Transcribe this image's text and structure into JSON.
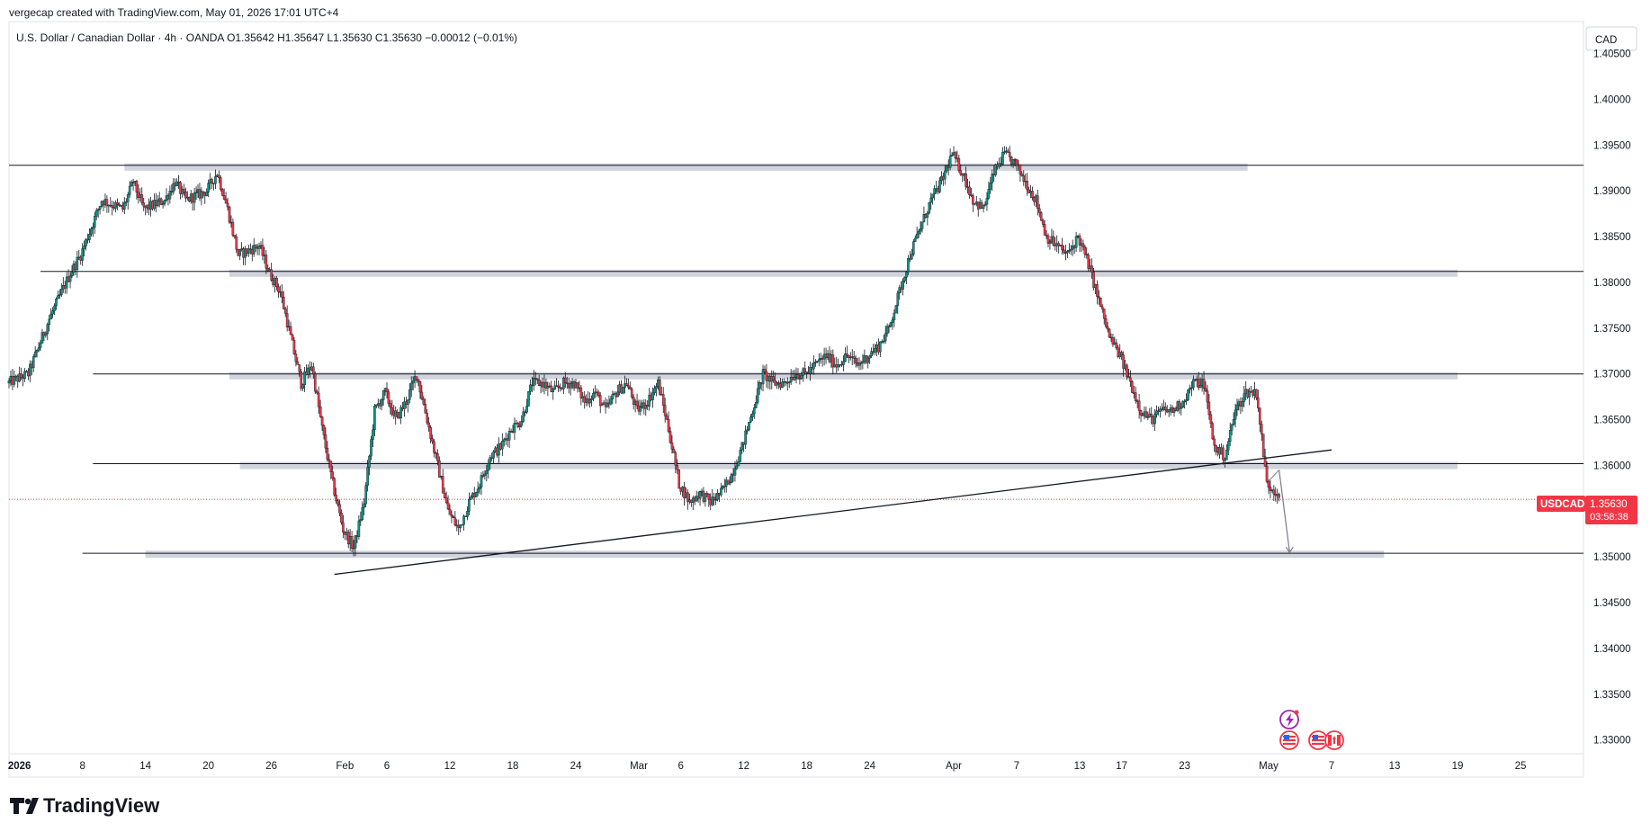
{
  "header": {
    "credit": "vergecap created with TradingView.com, May 01, 2026 17:01 UTC+4",
    "legend": "U.S. Dollar / Canadian Dollar · 4h · OANDA  O1.35642  H1.35647  L1.35630  C1.35630  −0.00012 (−0.01%)"
  },
  "currency_label": "CAD",
  "brand": {
    "name": "TradingView",
    "logo_icon": "tradingview-logo-icon"
  },
  "last_price": {
    "symbol": "USDCAD",
    "price": "1.35630",
    "countdown": "03:58:38",
    "color": "#f23645"
  },
  "colors": {
    "up": "#089981",
    "down": "#f23645",
    "wick": "#131722",
    "zone": "#d1d4dc",
    "line": "#131722"
  },
  "events": [
    {
      "name": "bolt-event-icon"
    },
    {
      "name": "us-flag-icon"
    },
    {
      "name": "us-flag-icon"
    },
    {
      "name": "ca-flag-icon"
    }
  ],
  "chart_data": {
    "type": "candlestick",
    "symbol": "USDCAD",
    "title": "U.S. Dollar / Canadian Dollar",
    "interval": "4h",
    "source": "OANDA",
    "ylim": [
      1.3285,
      1.4085
    ],
    "xlim": [
      "2026-01-01",
      "2026-05-31"
    ],
    "y_ticks": [
      "1.40500",
      "1.40000",
      "1.39500",
      "1.39000",
      "1.38500",
      "1.38000",
      "1.37500",
      "1.37000",
      "1.36500",
      "1.36000",
      "1.35500",
      "1.35000",
      "1.34500",
      "1.34000",
      "1.33500",
      "1.33000"
    ],
    "x_ticks": [
      {
        "date": "2026-01-02",
        "label": "2026",
        "bold": true
      },
      {
        "date": "2026-01-08",
        "label": "8"
      },
      {
        "date": "2026-01-14",
        "label": "14"
      },
      {
        "date": "2026-01-20",
        "label": "20"
      },
      {
        "date": "2026-01-26",
        "label": "26"
      },
      {
        "date": "2026-02-02",
        "label": "Feb"
      },
      {
        "date": "2026-02-06",
        "label": "6"
      },
      {
        "date": "2026-02-12",
        "label": "12"
      },
      {
        "date": "2026-02-18",
        "label": "18"
      },
      {
        "date": "2026-02-24",
        "label": "24"
      },
      {
        "date": "2026-03-02",
        "label": "Mar"
      },
      {
        "date": "2026-03-06",
        "label": "6"
      },
      {
        "date": "2026-03-12",
        "label": "12"
      },
      {
        "date": "2026-03-18",
        "label": "18"
      },
      {
        "date": "2026-03-24",
        "label": "24"
      },
      {
        "date": "2026-04-01",
        "label": "Apr"
      },
      {
        "date": "2026-04-07",
        "label": "7"
      },
      {
        "date": "2026-04-13",
        "label": "13"
      },
      {
        "date": "2026-04-17",
        "label": "17"
      },
      {
        "date": "2026-04-23",
        "label": "23"
      },
      {
        "date": "2026-05-01",
        "label": "May"
      },
      {
        "date": "2026-05-07",
        "label": "7"
      },
      {
        "date": "2026-05-13",
        "label": "13"
      },
      {
        "date": "2026-05-19",
        "label": "19"
      },
      {
        "date": "2026-05-25",
        "label": "25"
      }
    ],
    "path": [
      [
        "2026-01-01",
        1.369
      ],
      [
        "2026-01-03",
        1.37
      ],
      [
        "2026-01-05",
        1.376
      ],
      [
        "2026-01-07",
        1.381
      ],
      [
        "2026-01-08",
        1.383
      ],
      [
        "2026-01-10",
        1.389
      ],
      [
        "2026-01-12",
        1.388
      ],
      [
        "2026-01-13",
        1.391
      ],
      [
        "2026-01-14",
        1.388
      ],
      [
        "2026-01-16",
        1.389
      ],
      [
        "2026-01-17",
        1.391
      ],
      [
        "2026-01-18",
        1.389
      ],
      [
        "2026-01-20",
        1.39
      ],
      [
        "2026-01-21",
        1.392
      ],
      [
        "2026-01-22",
        1.388
      ],
      [
        "2026-01-23",
        1.383
      ],
      [
        "2026-01-25",
        1.384
      ],
      [
        "2026-01-26",
        1.381
      ],
      [
        "2026-01-27",
        1.379
      ],
      [
        "2026-01-28",
        1.374
      ],
      [
        "2026-01-29",
        1.369
      ],
      [
        "2026-01-30",
        1.371
      ],
      [
        "2026-01-31",
        1.364
      ],
      [
        "2026-02-01",
        1.358
      ],
      [
        "2026-02-02",
        1.353
      ],
      [
        "2026-02-03",
        1.351
      ],
      [
        "2026-02-04",
        1.356
      ],
      [
        "2026-02-05",
        1.366
      ],
      [
        "2026-02-06",
        1.368
      ],
      [
        "2026-02-07",
        1.365
      ],
      [
        "2026-02-08",
        1.367
      ],
      [
        "2026-02-09",
        1.37
      ],
      [
        "2026-02-10",
        1.365
      ],
      [
        "2026-02-11",
        1.36
      ],
      [
        "2026-02-12",
        1.355
      ],
      [
        "2026-02-13",
        1.353
      ],
      [
        "2026-02-14",
        1.356
      ],
      [
        "2026-02-15",
        1.358
      ],
      [
        "2026-02-16",
        1.361
      ],
      [
        "2026-02-17",
        1.362
      ],
      [
        "2026-02-18",
        1.364
      ],
      [
        "2026-02-19",
        1.365
      ],
      [
        "2026-02-20",
        1.369
      ],
      [
        "2026-02-21",
        1.369
      ],
      [
        "2026-02-22",
        1.368
      ],
      [
        "2026-02-23",
        1.369
      ],
      [
        "2026-02-24",
        1.369
      ],
      [
        "2026-02-25",
        1.367
      ],
      [
        "2026-02-26",
        1.368
      ],
      [
        "2026-02-27",
        1.366
      ],
      [
        "2026-02-28",
        1.368
      ],
      [
        "2026-03-01",
        1.369
      ],
      [
        "2026-03-02",
        1.366
      ],
      [
        "2026-03-03",
        1.367
      ],
      [
        "2026-03-04",
        1.369
      ],
      [
        "2026-03-05",
        1.364
      ],
      [
        "2026-03-06",
        1.358
      ],
      [
        "2026-03-07",
        1.356
      ],
      [
        "2026-03-08",
        1.357
      ],
      [
        "2026-03-09",
        1.356
      ],
      [
        "2026-03-10",
        1.357
      ],
      [
        "2026-03-11",
        1.359
      ],
      [
        "2026-03-12",
        1.362
      ],
      [
        "2026-03-13",
        1.366
      ],
      [
        "2026-03-14",
        1.37
      ],
      [
        "2026-03-15",
        1.369
      ],
      [
        "2026-03-16",
        1.369
      ],
      [
        "2026-03-17",
        1.37
      ],
      [
        "2026-03-18",
        1.37
      ],
      [
        "2026-03-19",
        1.371
      ],
      [
        "2026-03-20",
        1.372
      ],
      [
        "2026-03-21",
        1.371
      ],
      [
        "2026-03-22",
        1.372
      ],
      [
        "2026-03-23",
        1.371
      ],
      [
        "2026-03-24",
        1.372
      ],
      [
        "2026-03-25",
        1.373
      ],
      [
        "2026-03-26",
        1.375
      ],
      [
        "2026-03-27",
        1.379
      ],
      [
        "2026-03-28",
        1.383
      ],
      [
        "2026-03-29",
        1.386
      ],
      [
        "2026-03-30",
        1.389
      ],
      [
        "2026-03-31",
        1.391
      ],
      [
        "2026-04-01",
        1.394
      ],
      [
        "2026-04-02",
        1.392
      ],
      [
        "2026-04-03",
        1.389
      ],
      [
        "2026-04-04",
        1.388
      ],
      [
        "2026-04-05",
        1.392
      ],
      [
        "2026-04-06",
        1.394
      ],
      [
        "2026-04-07",
        1.393
      ],
      [
        "2026-04-08",
        1.391
      ],
      [
        "2026-04-09",
        1.389
      ],
      [
        "2026-04-10",
        1.385
      ],
      [
        "2026-04-11",
        1.384
      ],
      [
        "2026-04-12",
        1.383
      ],
      [
        "2026-04-13",
        1.385
      ],
      [
        "2026-04-14",
        1.382
      ],
      [
        "2026-04-15",
        1.378
      ],
      [
        "2026-04-16",
        1.374
      ],
      [
        "2026-04-17",
        1.372
      ],
      [
        "2026-04-18",
        1.369
      ],
      [
        "2026-04-19",
        1.366
      ],
      [
        "2026-04-20",
        1.365
      ],
      [
        "2026-04-21",
        1.366
      ],
      [
        "2026-04-22",
        1.366
      ],
      [
        "2026-04-23",
        1.367
      ],
      [
        "2026-04-24",
        1.369
      ],
      [
        "2026-04-25",
        1.369
      ],
      [
        "2026-04-26",
        1.362
      ],
      [
        "2026-04-27",
        1.361
      ],
      [
        "2026-04-28",
        1.366
      ],
      [
        "2026-04-29",
        1.368
      ],
      [
        "2026-04-30",
        1.368
      ],
      [
        "2026-05-01",
        1.358
      ],
      [
        "2026-05-02",
        1.357
      ]
    ],
    "last_price": 1.3563,
    "zones": [
      {
        "price": 1.3926,
        "from": "2026-01-12",
        "to": "2026-04-29"
      },
      {
        "price": 1.381,
        "from": "2026-01-22",
        "to": "2026-05-19"
      },
      {
        "price": 1.3698,
        "from": "2026-01-22",
        "to": "2026-05-19"
      },
      {
        "price": 1.36,
        "from": "2026-01-23",
        "to": "2026-05-19"
      },
      {
        "price": 1.3503,
        "from": "2026-01-14",
        "to": "2026-05-12"
      }
    ],
    "horizontal_lines": [
      {
        "price": 1.3928,
        "from": "2026-01-01",
        "to": "2026-05-31"
      },
      {
        "price": 1.3812,
        "from": "2026-01-04",
        "to": "2026-05-31"
      },
      {
        "price": 1.37,
        "from": "2026-01-09",
        "to": "2026-05-31"
      },
      {
        "price": 1.3602,
        "from": "2026-01-09",
        "to": "2026-05-31"
      },
      {
        "price": 1.3504,
        "from": "2026-01-08",
        "to": "2026-05-31"
      }
    ],
    "trendline": {
      "from": [
        "2026-02-01",
        1.3481
      ],
      "to": [
        "2026-05-07",
        1.3617
      ]
    },
    "projection_arrow": {
      "from": [
        "2026-05-02",
        1.3595
      ],
      "to": [
        "2026-05-03",
        1.3505
      ]
    }
  }
}
